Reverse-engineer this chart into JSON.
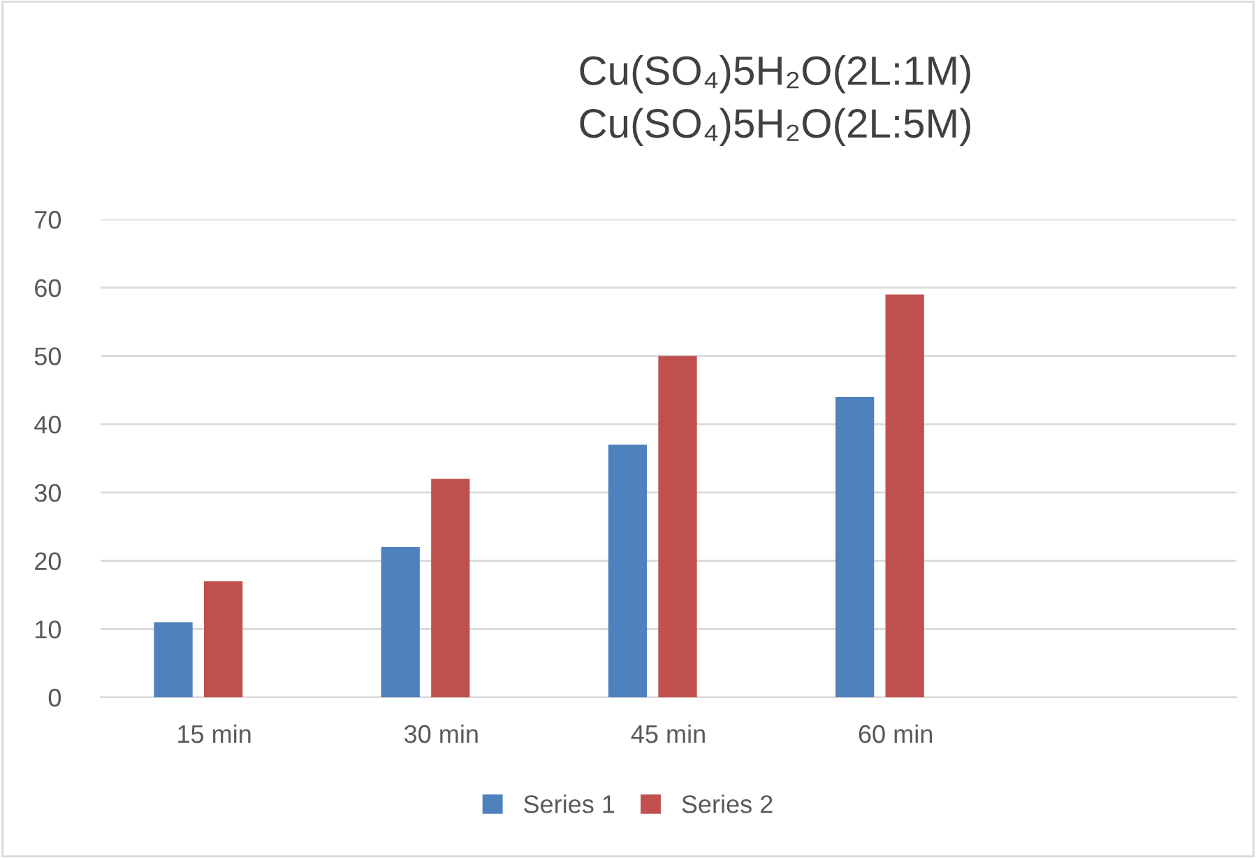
{
  "chart_data": {
    "type": "bar",
    "title": "Cu(SO₄)5H₂O(2L:1M)\nCu(SO₄)5H₂O(2L:5M)",
    "categories": [
      "15 min",
      "30 min",
      "45 min",
      "60 min",
      null
    ],
    "series": [
      {
        "name": "Series 1",
        "color": "#4f81bd",
        "values": [
          11,
          22,
          37,
          44,
          null
        ]
      },
      {
        "name": "Series 2",
        "color": "#c0504d",
        "values": [
          17,
          32,
          50,
          59,
          null
        ]
      }
    ],
    "ylim": [
      0,
      70
    ],
    "yticks": [
      0,
      10,
      20,
      30,
      40,
      50,
      60,
      70
    ],
    "grid": "y",
    "legend": "bottom"
  }
}
